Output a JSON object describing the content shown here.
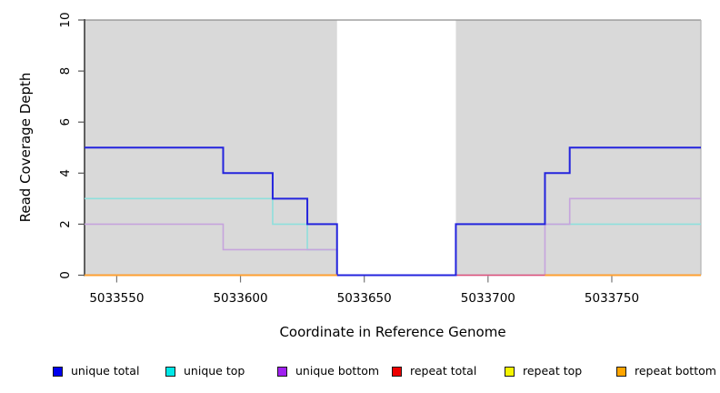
{
  "y_axis": {
    "label": "Read Coverage Depth"
  },
  "x_axis": {
    "label": "Coordinate in Reference Genome"
  },
  "legend": {
    "items": [
      {
        "label": "unique total",
        "color": "#0000EE"
      },
      {
        "label": "unique top",
        "color": "#00E8E8"
      },
      {
        "label": "unique bottom",
        "color": "#A020F0"
      },
      {
        "label": "repeat total",
        "color": "#EE0000"
      },
      {
        "label": "repeat top",
        "color": "#F5F500"
      },
      {
        "label": "repeat bottom",
        "color": "#FFA500"
      }
    ]
  },
  "chart_data": {
    "type": "line",
    "subtype": "step",
    "title": "",
    "xlabel": "Coordinate in Reference Genome",
    "ylabel": "Read Coverage Depth",
    "x_range": [
      5033537,
      5033786
    ],
    "ylim": [
      0,
      10
    ],
    "xticks": [
      5033550,
      5033600,
      5033650,
      5033700,
      5033750
    ],
    "yticks": [
      0,
      2,
      4,
      6,
      8,
      10
    ],
    "grid": false,
    "legend_position": "bottom",
    "background_shading": {
      "fill": "#D9D9D9",
      "regions": [
        {
          "from": 5033537,
          "to": 5033639
        },
        {
          "from": 5033687,
          "to": 5033786
        }
      ],
      "note": "white gap (no shading) from 5033639 to 5033687"
    },
    "series": [
      {
        "name": "unique total",
        "legend_color": "#0000EE",
        "line_color": "#2424DD",
        "width": 2,
        "segments": [
          {
            "from": 5033537,
            "to": 5033593,
            "value": 5
          },
          {
            "from": 5033593,
            "to": 5033613,
            "value": 4
          },
          {
            "from": 5033613,
            "to": 5033627,
            "value": 3
          },
          {
            "from": 5033627,
            "to": 5033639,
            "value": 2
          },
          {
            "from": 5033639,
            "to": 5033687,
            "value": 0
          },
          {
            "from": 5033687,
            "to": 5033723,
            "value": 2
          },
          {
            "from": 5033723,
            "to": 5033733,
            "value": 4
          },
          {
            "from": 5033733,
            "to": 5033786,
            "value": 5
          }
        ]
      },
      {
        "name": "unique top",
        "legend_color": "#00E8E8",
        "line_color": "#8FDFDC",
        "width": 1.6,
        "segments": [
          {
            "from": 5033537,
            "to": 5033613,
            "value": 3
          },
          {
            "from": 5033613,
            "to": 5033627,
            "value": 2
          },
          {
            "from": 5033627,
            "to": 5033639,
            "value": 1
          },
          {
            "from": 5033639,
            "to": 5033687,
            "value": 0
          },
          {
            "from": 5033687,
            "to": 5033786,
            "value": 2
          }
        ]
      },
      {
        "name": "unique bottom",
        "legend_color": "#A020F0",
        "line_color": "#C6A4DD",
        "width": 1.6,
        "segments": [
          {
            "from": 5033537,
            "to": 5033593,
            "value": 2
          },
          {
            "from": 5033593,
            "to": 5033639,
            "value": 1
          },
          {
            "from": 5033639,
            "to": 5033723,
            "value": 0
          },
          {
            "from": 5033723,
            "to": 5033733,
            "value": 2
          },
          {
            "from": 5033733,
            "to": 5033786,
            "value": 3
          }
        ]
      },
      {
        "name": "repeat total",
        "legend_color": "#EE0000",
        "line_color": "#DC5279",
        "width": 1.6,
        "segments": [
          {
            "from": 5033687,
            "to": 5033723,
            "value": 0
          }
        ]
      },
      {
        "name": "repeat top",
        "legend_color": "#F5F500",
        "line_color": "#F2E640",
        "width": 1.6,
        "segments": []
      },
      {
        "name": "repeat bottom",
        "legend_color": "#FFA500",
        "line_color": "#FFA031",
        "width": 2,
        "segments": [
          {
            "from": 5033537,
            "to": 5033639,
            "value": 0
          },
          {
            "from": 5033723,
            "to": 5033786,
            "value": 0
          }
        ]
      }
    ],
    "draw_order": [
      "unique top",
      "unique bottom",
      "repeat total",
      "unique total",
      "repeat top",
      "repeat bottom"
    ]
  }
}
